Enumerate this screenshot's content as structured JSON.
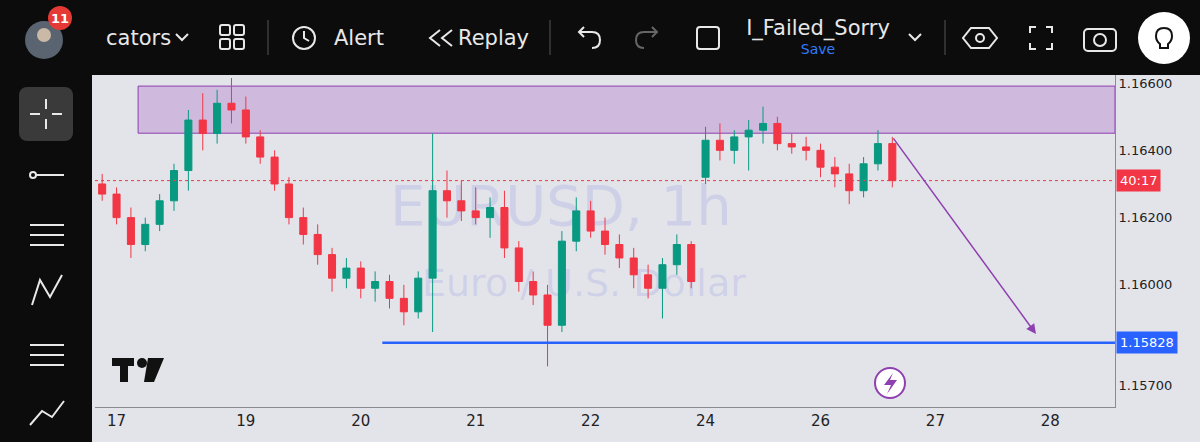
{
  "toolbar": {
    "badge": "11",
    "indicators": "cators",
    "alert": "Alert",
    "replay": "Replay",
    "layout_name": "I_Failed_Sorry",
    "save": "Save"
  },
  "chart_data": {
    "type": "candlestick",
    "watermark": [
      "EURUSD, 1h",
      "Euro / U.S. Dollar"
    ],
    "categories": [
      null,
      "17",
      null,
      null,
      null,
      null,
      null,
      null,
      null,
      null,
      "19",
      null,
      null,
      null,
      null,
      null,
      null,
      null,
      "20",
      null,
      null,
      null,
      null,
      null,
      null,
      null,
      "21",
      null,
      null,
      null,
      null,
      null,
      null,
      null,
      "22",
      null,
      null,
      null,
      null,
      null,
      null,
      null,
      "24",
      null,
      null,
      null,
      null,
      null,
      null,
      null,
      "26",
      null,
      null,
      null,
      null,
      null,
      null,
      null,
      "27",
      null,
      null,
      null,
      null,
      null,
      null,
      null,
      "28",
      null,
      null,
      null,
      null
    ],
    "open": [
      1.163,
      1.1627,
      1.162,
      1.1612,
      1.1618,
      1.1625,
      1.1634,
      1.1649,
      1.1645,
      1.1654,
      1.1652,
      1.1644,
      1.1638,
      1.163,
      1.162,
      1.1615,
      1.1609,
      1.1602,
      1.1605,
      1.1599,
      1.1601,
      1.1596,
      1.1592,
      1.1602,
      1.1628,
      1.1625,
      1.1622,
      1.162,
      1.1623,
      1.1611,
      1.1601,
      1.1597,
      1.1588,
      1.1613,
      1.1622,
      1.1616,
      1.1612,
      1.1608,
      1.1603,
      1.1599,
      1.1606,
      1.1612,
      1.1632,
      1.1643,
      1.164,
      1.1644,
      1.1646,
      1.1648,
      1.1642,
      1.1641,
      1.164,
      1.1635,
      1.1633,
      1.1628,
      1.1636,
      1.1642,
      null,
      null,
      null,
      null,
      null,
      null,
      null,
      null,
      null,
      null,
      null,
      null,
      null,
      null,
      null
    ],
    "high": [
      1.1633,
      1.1629,
      1.1623,
      1.162,
      1.1627,
      1.1636,
      1.1652,
      1.1657,
      1.1658,
      1.16615,
      1.1656,
      1.1646,
      1.164,
      1.1632,
      1.1623,
      1.1618,
      1.1611,
      1.1608,
      1.1607,
      1.1604,
      1.1603,
      1.16,
      1.1604,
      1.1645,
      1.1634,
      1.1631,
      1.1629,
      1.1626,
      1.1628,
      1.1613,
      1.1604,
      1.16,
      1.1616,
      1.1626,
      1.1625,
      1.162,
      1.1615,
      1.1611,
      1.1606,
      1.1608,
      1.1615,
      1.1613,
      1.1647,
      1.1648,
      1.1646,
      1.1649,
      1.1653,
      1.165,
      1.1645,
      1.1644,
      1.1642,
      1.1638,
      1.1636,
      1.1638,
      1.1646,
      1.1644,
      null,
      null,
      null,
      null,
      null,
      null,
      null,
      null,
      null,
      null,
      null,
      null,
      null,
      null,
      null
    ],
    "low": [
      1.1625,
      1.1618,
      1.1608,
      1.161,
      1.1616,
      1.1622,
      1.1628,
      1.164,
      1.1642,
      1.1648,
      1.1642,
      1.1636,
      1.1628,
      1.1618,
      1.1612,
      1.1606,
      1.1598,
      1.1599,
      1.1596,
      1.1595,
      1.1593,
      1.1588,
      1.159,
      1.1586,
      1.162,
      1.1619,
      1.1618,
      1.1614,
      1.1608,
      1.1598,
      1.1594,
      1.15758,
      1.1586,
      1.161,
      1.1614,
      1.1609,
      1.1605,
      1.1599,
      1.1596,
      1.159,
      1.1603,
      1.1599,
      1.163,
      1.1637,
      1.1636,
      1.1634,
      1.1642,
      1.164,
      1.1639,
      1.1637,
      1.1632,
      1.1629,
      1.1624,
      1.1626,
      1.1634,
      1.1629,
      null,
      null,
      null,
      null,
      null,
      null,
      null,
      null,
      null,
      null,
      null,
      null,
      null,
      null,
      null
    ],
    "close": [
      1.1627,
      1.162,
      1.1612,
      1.1618,
      1.1625,
      1.1634,
      1.1649,
      1.1645,
      1.1654,
      1.1652,
      1.1644,
      1.1638,
      1.163,
      1.162,
      1.1615,
      1.1609,
      1.1602,
      1.1605,
      1.1599,
      1.1601,
      1.1596,
      1.1592,
      1.1602,
      1.1628,
      1.1625,
      1.1622,
      1.162,
      1.1623,
      1.1611,
      1.1601,
      1.1597,
      1.1588,
      1.1613,
      1.1622,
      1.1616,
      1.1612,
      1.1608,
      1.1603,
      1.1599,
      1.1606,
      1.1612,
      1.1601,
      1.1643,
      1.164,
      1.1644,
      1.1646,
      1.1648,
      1.1642,
      1.1641,
      1.164,
      1.1635,
      1.1633,
      1.1628,
      1.1636,
      1.1642,
      1.1631,
      null,
      null,
      null,
      null,
      null,
      null,
      null,
      null,
      null,
      null,
      null,
      null,
      null,
      null,
      null
    ],
    "colors": [
      "#f23645",
      "#f23645",
      "#f23645",
      "#089981",
      "#089981",
      "#089981",
      "#089981",
      "#f23645",
      "#089981",
      "#f23645",
      "#f23645",
      "#f23645",
      "#f23645",
      "#f23645",
      "#f23645",
      "#f23645",
      "#f23645",
      "#089981",
      "#f23645",
      "#089981",
      "#f23645",
      "#f23645",
      "#089981",
      "#089981",
      "#f23645",
      "#f23645",
      "#f23645",
      "#089981",
      "#f23645",
      "#f23645",
      "#f23645",
      "#f23645",
      "#089981",
      "#089981",
      "#f23645",
      "#f23645",
      "#f23645",
      "#f23645",
      "#f23645",
      "#089981",
      "#089981",
      "#f23645",
      "#089981",
      "#f23645",
      "#089981",
      "#089981",
      "#089981",
      "#f23645",
      "#f23645",
      "#f23645",
      "#f23645",
      "#f23645",
      "#f23645",
      "#089981",
      "#089981",
      "#f23645",
      null,
      null,
      null,
      null,
      null,
      null,
      null,
      null,
      null,
      null,
      null,
      null,
      null,
      null,
      null
    ],
    "ylim": [
      1.15637,
      1.16624
    ],
    "yticks": [
      {
        "value": 1.157,
        "label": "1.15700"
      },
      {
        "value": 1.16,
        "label": "1.16000"
      },
      {
        "value": 1.162,
        "label": "1.16200"
      },
      {
        "value": 1.164,
        "label": "1.16400"
      },
      {
        "value": 1.166,
        "label": "1.16600"
      }
    ],
    "grid": false,
    "zone": {
      "start": 3,
      "from": 1.16451,
      "to": 1.16591,
      "color": "#8e3fb0"
    },
    "level": {
      "start": 20,
      "value": 1.15828,
      "label": "1.15828",
      "color": "#2962ff"
    },
    "current_price": {
      "value": 1.1631,
      "label": "40:17",
      "color": "#f23645"
    },
    "arrow": {
      "from": [
        55,
        1.1644
      ],
      "to": [
        65,
        1.15854
      ],
      "color": "#8e3fb0"
    }
  }
}
